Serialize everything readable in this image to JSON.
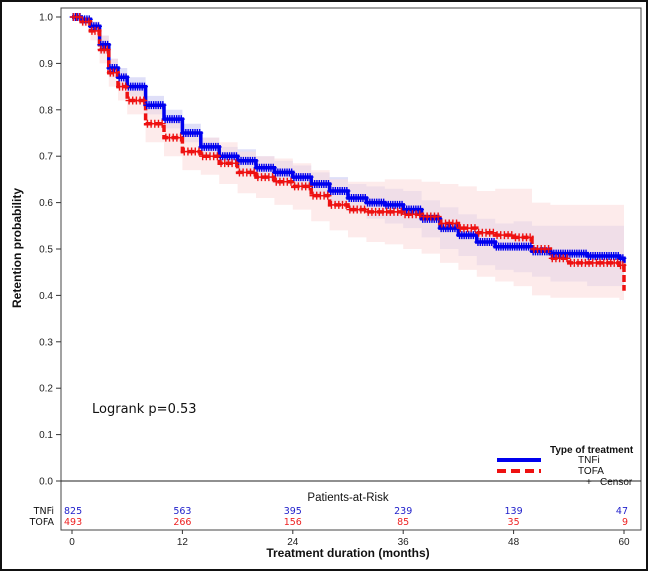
{
  "chart_data": {
    "type": "line",
    "subtype": "kaplan-meier",
    "title": "",
    "xlabel": "Treatment duration (months)",
    "ylabel": "Retention probability",
    "xlim": [
      0,
      60
    ],
    "ylim": [
      0,
      1.0
    ],
    "x_ticks": [
      "0",
      "12",
      "24",
      "36",
      "48",
      "60"
    ],
    "y_ticks": [
      "0.0",
      "0.1",
      "0.2",
      "0.3",
      "0.4",
      "0.5",
      "0.6",
      "0.7",
      "0.8",
      "0.9",
      "1.0"
    ],
    "grid": false,
    "annotation": "Logrank p=0.53",
    "legend": {
      "title": "Type of treatment",
      "position": "bottom-right",
      "entries": [
        "TNFi",
        "TOFA",
        "Censor"
      ]
    },
    "series": [
      {
        "name": "TNFi",
        "color": "#0000ee",
        "band_color": "#b8b8f0",
        "x": [
          0,
          1,
          2,
          3,
          4,
          5,
          6,
          8,
          10,
          12,
          14,
          16,
          18,
          20,
          22,
          24,
          26,
          28,
          30,
          32,
          34,
          36,
          38,
          40,
          42,
          44,
          46,
          48,
          50,
          52,
          54,
          56,
          58,
          59.5,
          60
        ],
        "y": [
          1.0,
          0.995,
          0.98,
          0.94,
          0.89,
          0.87,
          0.85,
          0.81,
          0.78,
          0.75,
          0.72,
          0.7,
          0.69,
          0.675,
          0.665,
          0.655,
          0.64,
          0.625,
          0.61,
          0.6,
          0.595,
          0.585,
          0.565,
          0.545,
          0.53,
          0.515,
          0.505,
          0.505,
          0.495,
          0.49,
          0.49,
          0.485,
          0.485,
          0.48,
          0.47
        ],
        "lower": [
          1.0,
          0.99,
          0.97,
          0.92,
          0.87,
          0.85,
          0.83,
          0.79,
          0.76,
          0.73,
          0.7,
          0.68,
          0.665,
          0.65,
          0.64,
          0.63,
          0.615,
          0.595,
          0.58,
          0.565,
          0.555,
          0.545,
          0.525,
          0.5,
          0.485,
          0.465,
          0.455,
          0.45,
          0.44,
          0.43,
          0.43,
          0.42,
          0.42,
          0.42,
          0.42
        ],
        "upper": [
          1.0,
          1.0,
          0.99,
          0.96,
          0.91,
          0.89,
          0.87,
          0.83,
          0.8,
          0.77,
          0.74,
          0.72,
          0.715,
          0.7,
          0.69,
          0.68,
          0.665,
          0.655,
          0.64,
          0.635,
          0.63,
          0.625,
          0.605,
          0.59,
          0.575,
          0.565,
          0.555,
          0.56,
          0.55,
          0.55,
          0.55,
          0.55,
          0.55,
          0.55,
          0.55
        ]
      },
      {
        "name": "TOFA",
        "color": "#ee1111",
        "band_color": "#fcdede",
        "x": [
          0,
          1,
          2,
          3,
          4,
          5,
          6,
          8,
          10,
          12,
          14,
          16,
          18,
          20,
          22,
          24,
          26,
          28,
          30,
          32,
          34,
          36,
          38,
          40,
          42,
          44,
          46,
          48,
          50,
          52,
          54,
          56,
          58,
          59.5,
          60
        ],
        "y": [
          1.0,
          0.99,
          0.97,
          0.93,
          0.88,
          0.85,
          0.82,
          0.77,
          0.74,
          0.71,
          0.7,
          0.685,
          0.665,
          0.655,
          0.645,
          0.635,
          0.615,
          0.595,
          0.585,
          0.58,
          0.58,
          0.575,
          0.57,
          0.555,
          0.545,
          0.535,
          0.53,
          0.525,
          0.5,
          0.48,
          0.47,
          0.47,
          0.47,
          0.465,
          0.41
        ],
        "lower": [
          1.0,
          0.98,
          0.95,
          0.9,
          0.85,
          0.82,
          0.79,
          0.73,
          0.7,
          0.67,
          0.66,
          0.64,
          0.62,
          0.61,
          0.595,
          0.585,
          0.56,
          0.54,
          0.525,
          0.515,
          0.51,
          0.5,
          0.49,
          0.47,
          0.455,
          0.44,
          0.43,
          0.42,
          0.4,
          0.395,
          0.395,
          0.395,
          0.395,
          0.39,
          0.31
        ],
        "upper": [
          1.0,
          1.0,
          0.99,
          0.96,
          0.91,
          0.88,
          0.85,
          0.81,
          0.78,
          0.75,
          0.74,
          0.73,
          0.71,
          0.7,
          0.695,
          0.685,
          0.67,
          0.65,
          0.645,
          0.645,
          0.65,
          0.65,
          0.645,
          0.64,
          0.635,
          0.625,
          0.63,
          0.63,
          0.6,
          0.595,
          0.595,
          0.595,
          0.595,
          0.595,
          0.595
        ]
      }
    ],
    "risk_table": {
      "title": "Patients-at-Risk",
      "times": [
        0,
        12,
        24,
        36,
        48,
        60
      ],
      "rows": [
        {
          "label": "TNFi",
          "color": "#2222cc",
          "values": [
            "825",
            "563",
            "395",
            "239",
            "139",
            "47"
          ]
        },
        {
          "label": "TOFA",
          "color": "#ee2222",
          "values": [
            "493",
            "266",
            "156",
            "85",
            "35",
            "9"
          ]
        }
      ]
    }
  }
}
